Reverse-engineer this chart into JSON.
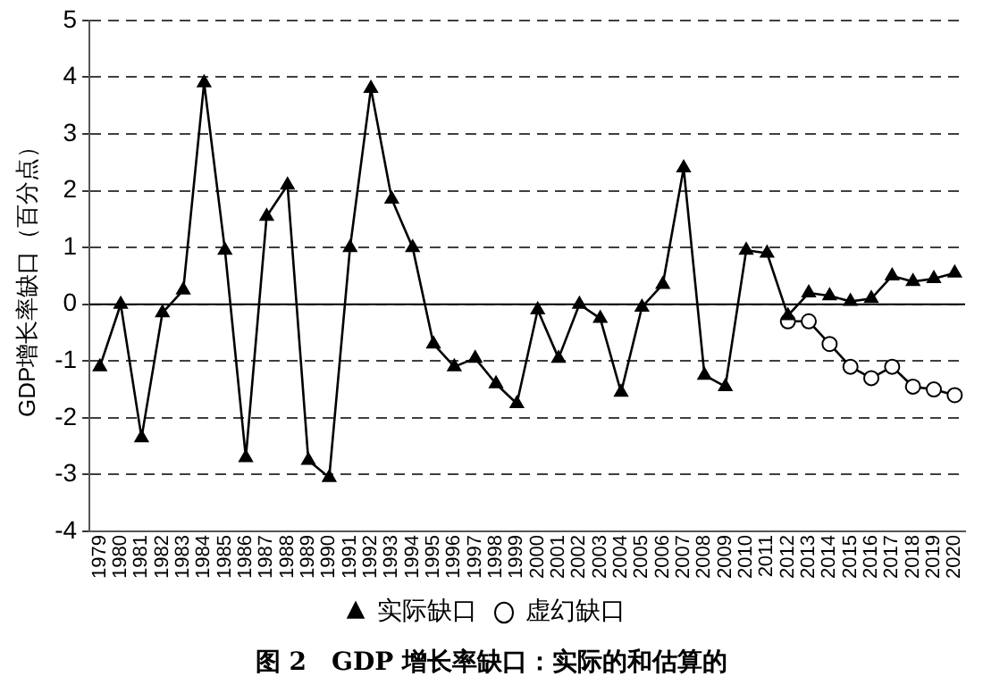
{
  "chart_data": {
    "type": "line",
    "title": "图 2　GDP 增长率缺口：实际的和估算的",
    "ylabel": "GDP增长率缺口（百分点）",
    "categories": [
      "1979",
      "1980",
      "1981",
      "1982",
      "1983",
      "1984",
      "1985",
      "1986",
      "1987",
      "1988",
      "1989",
      "1990",
      "1991",
      "1992",
      "1993",
      "1994",
      "1995",
      "1996",
      "1997",
      "1998",
      "1999",
      "2000",
      "2001",
      "2002",
      "2003",
      "2004",
      "2005",
      "2006",
      "2007",
      "2008",
      "2009",
      "2010",
      "2011",
      "2012",
      "2013",
      "2014",
      "2015",
      "2016",
      "2017",
      "2018",
      "2019",
      "2020"
    ],
    "series": [
      {
        "name": "实际缺口",
        "color": "#000000",
        "marker": "triangle",
        "values": [
          -1.1,
          0.0,
          -2.35,
          -0.15,
          0.25,
          3.9,
          0.95,
          -2.7,
          1.55,
          2.1,
          -2.75,
          -3.05,
          1.0,
          3.8,
          1.85,
          1.0,
          -0.7,
          -1.1,
          -0.95,
          -1.4,
          -1.75,
          -0.1,
          -0.95,
          0.0,
          -0.25,
          -1.55,
          -0.05,
          0.35,
          2.4,
          -1.25,
          -1.45,
          0.95,
          0.9,
          -0.2,
          0.2,
          0.15,
          0.05,
          0.1,
          0.5,
          0.4,
          0.45,
          0.55
        ]
      },
      {
        "name": "虚幻缺口",
        "color": "#000000",
        "marker": "circle",
        "values": [
          null,
          null,
          null,
          null,
          null,
          null,
          null,
          null,
          null,
          null,
          null,
          null,
          null,
          null,
          null,
          null,
          null,
          null,
          null,
          null,
          null,
          null,
          null,
          null,
          null,
          null,
          null,
          null,
          null,
          null,
          null,
          null,
          null,
          -0.3,
          -0.3,
          -0.7,
          -1.1,
          -1.3,
          -1.1,
          -1.45,
          -1.5,
          -1.6
        ]
      }
    ],
    "ylim": [
      -4,
      5
    ],
    "yticks": [
      -4,
      -3,
      -2,
      -1,
      0,
      1,
      2,
      3,
      4,
      5
    ],
    "grid": "y",
    "legend": "bottom",
    "line_style": "solid",
    "ref_lines": [
      {
        "axis": "y",
        "value": 0,
        "color": "#000000"
      }
    ]
  }
}
